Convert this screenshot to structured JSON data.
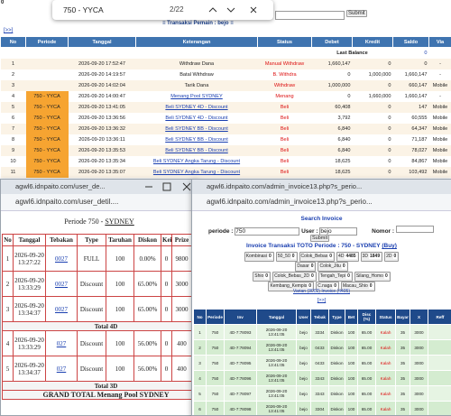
{
  "corner": "0",
  "find_bar": {
    "query": "750 - YYCA",
    "count": "2/22"
  },
  "page": {
    "title": "≡ Transaksi  Pemain : bejo ≡",
    "submit": "Submit",
    "nav": "[>>]",
    "table": {
      "headers": [
        "No",
        "Periode",
        "Tanggal",
        "Keterangan",
        "Status",
        "Debet",
        "Kredit",
        "Saldo",
        "Via"
      ],
      "last_balance_label": "Last Balance",
      "last_balance": "0",
      "rows": [
        [
          "1",
          null,
          "2026-09-20 17:52:47",
          "Withdraw Dana",
          "Manual Withdraw",
          "1,660,147",
          "0",
          "0",
          "-"
        ],
        [
          "2",
          null,
          "2026-09-20 14:19:57",
          "Batal Withdraw",
          "B. Withdra",
          "0",
          "1,000,000",
          "1,660,147",
          "-"
        ],
        [
          "3",
          null,
          "2026-09-20 14:02:04",
          "Tarik Dana",
          "Withdraw",
          "1,000,000",
          "0",
          "660,147",
          "Mobile"
        ],
        [
          "4",
          "750 - YYCA",
          "2026-09-20 14:00:47",
          "Menang Pool SYDNEY",
          "Menang",
          "0",
          "1,660,000",
          "1,660,147",
          "-"
        ],
        [
          "5",
          "750 - YYCA",
          "2026-09-20 13:41:05",
          "Beli SYDNEY 4D - Discount",
          "Beli",
          "60,408",
          "0",
          "147",
          "Mobile"
        ],
        [
          "6",
          "750 - YYCA",
          "2026-09-20 13:36:56",
          "Beli SYDNEY 4D - Discount",
          "Beli",
          "3,792",
          "0",
          "60,555",
          "Mobile"
        ],
        [
          "7",
          "750 - YYCA",
          "2026-09-20 13:36:32",
          "Beli SYDNEY BB - Discount",
          "Beli",
          "6,840",
          "0",
          "64,347",
          "Mobile"
        ],
        [
          "8",
          "750 - YYCA",
          "2026-09-20 13:36:11",
          "Beli SYDNEY BB - Discount",
          "Beli",
          "6,840",
          "0",
          "71,187",
          "Mobile"
        ],
        [
          "9",
          "750 - YYCA",
          "2026-09-20 13:35:53",
          "Beli SYDNEY BB - Discount",
          "Beli",
          "6,840",
          "0",
          "78,027",
          "Mobile"
        ],
        [
          "10",
          "750 - YYCA",
          "2026-09-20 13:35:34",
          "Beli SYDNEY Angka Tarung - Discount",
          "Beli",
          "18,625",
          "0",
          "84,867",
          "Mobile"
        ],
        [
          "11",
          "750 - YYCA",
          "2026-09-20 13:35:07",
          "Beli SYDNEY Angka Tarung - Discount",
          "Beli",
          "18,625",
          "0",
          "103,492",
          "Mobile"
        ]
      ]
    }
  },
  "left_window": {
    "title": "agwl6.idnpaito.com/user_de...",
    "url": "agwl6.idnpaito.com/user_detil....",
    "heading": "Periode 750 - ",
    "heading_link": "SYDNEY",
    "headers": [
      "No",
      "Tanggal",
      "Tebakan",
      "Type",
      "Taruhan",
      "Diskon",
      "Kei",
      "Prize",
      "Ba"
    ],
    "groups": [
      {
        "rows": [
          [
            "1",
            "2026-09-20 13:27:22",
            "0027",
            "FULL",
            "100",
            "0.00%",
            "0",
            "9800"
          ],
          [
            "2",
            "2026-09-20 13:33:29",
            "0027",
            "Discount",
            "100",
            "65.00%",
            "0",
            "3000"
          ],
          [
            "3",
            "2026-09-20 13:34:37",
            "0027",
            "Discount",
            "100",
            "65.00%",
            "0",
            "3000"
          ]
        ],
        "total": "Total 4D"
      },
      {
        "rows": [
          [
            "4",
            "2026-09-20 13:33:29",
            "027",
            "Discount",
            "100",
            "56.00%",
            "0",
            "400"
          ],
          [
            "5",
            "2026-09-20 13:34:37",
            "027",
            "Discount",
            "100",
            "56.00%",
            "0",
            "400"
          ]
        ],
        "total": "Total 3D"
      }
    ],
    "grand_total": "GRAND TOTAL  Menang Pool SYDNEY"
  },
  "right_window": {
    "title": "agwl6.idnpaito.com/admin_invoice13.php?s_perio...",
    "url": "agwl6.idnpaito.com/admin_invoice13.php?s_perio...",
    "search_title": "Search Invoice",
    "periode_label": "periode :",
    "periode_value": "750",
    "user_label": "User :",
    "user_value": "bejo",
    "nomor_label": "Nomor :",
    "submit": "Submit",
    "invoice_title": "Invoice  Transaksi  TOTO Periode : 750 - SYDNEY",
    "invoice_link": "(Buy)",
    "buttons": [
      [
        [
          "Kombinasi",
          "0"
        ],
        [
          "50_50",
          "0"
        ],
        [
          "Colok_Bebas",
          "0"
        ],
        [
          "4D",
          "4485"
        ],
        [
          "3D",
          "1849"
        ],
        [
          "2D",
          "0"
        ]
      ],
      [
        [
          "Dasar",
          "0"
        ],
        [
          "Colok_Jitu",
          "0"
        ]
      ],
      [
        [
          "Shio",
          "0"
        ],
        [
          "Colok_Bebas_2D",
          "0"
        ],
        [
          "Tengah_Tepi",
          "0"
        ],
        [
          "Silang_Homo",
          "0"
        ]
      ],
      [
        [
          "Kembang_Kempis",
          "0"
        ],
        [
          "C.naga",
          "0"
        ],
        [
          "Macau_Shio",
          "0"
        ]
      ]
    ],
    "varian": "Varian (3002) Invoice (4405)",
    "nav": "[>>]",
    "headers": [
      "No",
      "Periode",
      "Inv",
      "Tanggal",
      "User",
      "Tebak",
      "Type",
      "Bet",
      "Disc (%)",
      "Status",
      "Bayar",
      "X",
      "Reff"
    ],
    "rows": [
      [
        "1",
        "750",
        "4D-7:78093",
        "2026-09-20 13:41:05",
        "bejo",
        "3334",
        "Diskon",
        "100",
        "65.00",
        "Kalah",
        "35",
        "3000"
      ],
      [
        "2",
        "750",
        "4D-7:78094",
        "2026-09-20 13:41:05",
        "bejo",
        "0433",
        "Diskon",
        "100",
        "65.00",
        "Kalah",
        "35",
        "3000"
      ],
      [
        "3",
        "750",
        "4D-7:78095",
        "2026-09-20 13:41:05",
        "bejo",
        "0433",
        "Diskon",
        "100",
        "65.00",
        "Kalah",
        "35",
        "3000"
      ],
      [
        "4",
        "750",
        "4D-7:78096",
        "2026-09-20 13:41:05",
        "bejo",
        "3343",
        "Diskon",
        "100",
        "65.00",
        "Kalah",
        "35",
        "3000"
      ],
      [
        "5",
        "750",
        "4D-7:78097",
        "2026-09-20 13:41:05",
        "bejo",
        "3343",
        "Diskon",
        "100",
        "65.00",
        "Kalah",
        "35",
        "3000"
      ],
      [
        "6",
        "750",
        "4D-7:78098",
        "2026-09-20 13:41:05",
        "bejo",
        "3304",
        "Diskon",
        "100",
        "65.00",
        "Kalah",
        "35",
        "3000"
      ],
      [
        "7",
        "750",
        "4D-7:78099",
        "2026-09-20 13:41:05",
        "bejo",
        "3340",
        "Diskon",
        "100",
        "65.00",
        "Kalah",
        "35",
        "3000"
      ]
    ]
  }
}
